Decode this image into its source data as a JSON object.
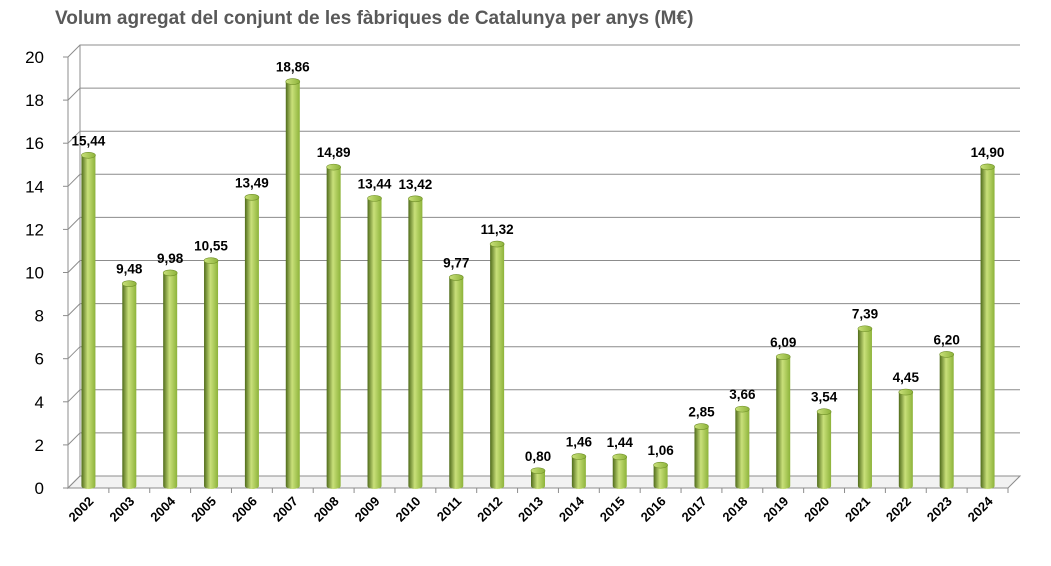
{
  "chart_data": {
    "type": "bar",
    "title": "Volum agregat del conjunt de les fàbriques de Catalunya per anys (M€)",
    "categories": [
      "2002",
      "2003",
      "2004",
      "2005",
      "2006",
      "2007",
      "2008",
      "2009",
      "2010",
      "2011",
      "2012",
      "2013",
      "2014",
      "2015",
      "2016",
      "2017",
      "2018",
      "2019",
      "2020",
      "2021",
      "2022",
      "2023",
      "2024"
    ],
    "values": [
      15.44,
      9.48,
      9.98,
      10.55,
      13.49,
      18.86,
      14.89,
      13.44,
      13.42,
      9.77,
      11.32,
      0.8,
      1.46,
      1.44,
      1.06,
      2.85,
      3.66,
      6.09,
      3.54,
      7.39,
      4.45,
      6.2,
      14.9
    ],
    "data_labels": [
      "15,44",
      "9,48",
      "9,98",
      "10,55",
      "13,49",
      "18,86",
      "14,89",
      "13,44",
      "13,42",
      "9,77",
      "11,32",
      "0,80",
      "1,46",
      "1,44",
      "1,06",
      "2,85",
      "3,66",
      "6,09",
      "3,54",
      "7,39",
      "4,45",
      "6,20",
      "14,90"
    ],
    "y_ticks": [
      "0",
      "2",
      "4",
      "6",
      "8",
      "10",
      "12",
      "14",
      "16",
      "18",
      "20"
    ],
    "ylim": [
      0,
      20
    ],
    "xlabel": "",
    "ylabel": "",
    "grid": true,
    "bar_color": "#8db33a",
    "bar_highlight": "#c9e07a",
    "bar_shadow": "#4f6b1a"
  }
}
